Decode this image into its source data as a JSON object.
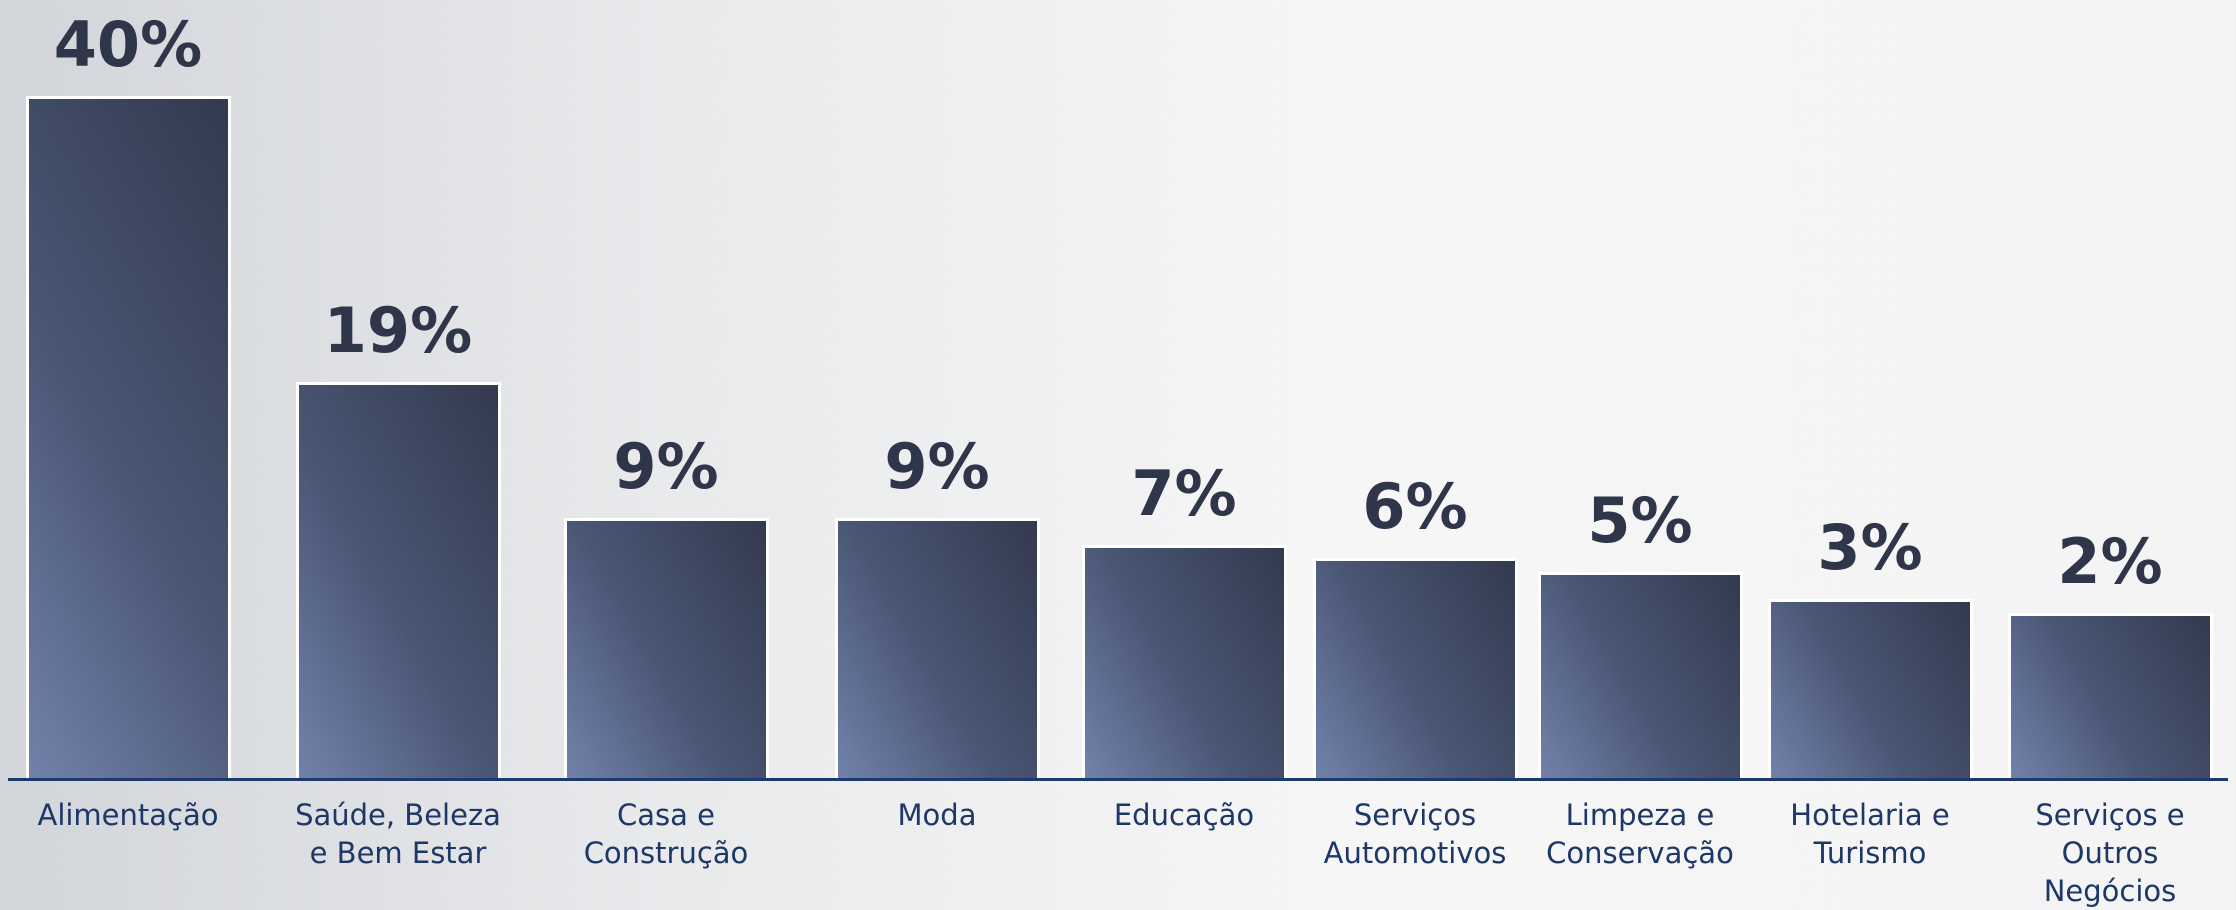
{
  "chart_data": {
    "type": "bar",
    "categories": [
      "Alimentação",
      "Saúde, Beleza e Bem Estar",
      "Casa e Construção",
      "Moda",
      "Educação",
      "Serviços Automotivos",
      "Limpeza e Conservação",
      "Hotelaria e Turismo",
      "Serviços e Outros Negócios"
    ],
    "values": [
      40,
      19,
      9,
      9,
      7,
      6,
      5,
      3,
      2
    ],
    "value_labels": [
      "40%",
      "19%",
      "9%",
      "9%",
      "7%",
      "6%",
      "5%",
      "3%",
      "2%"
    ],
    "color": "#4a5675"
  }
}
